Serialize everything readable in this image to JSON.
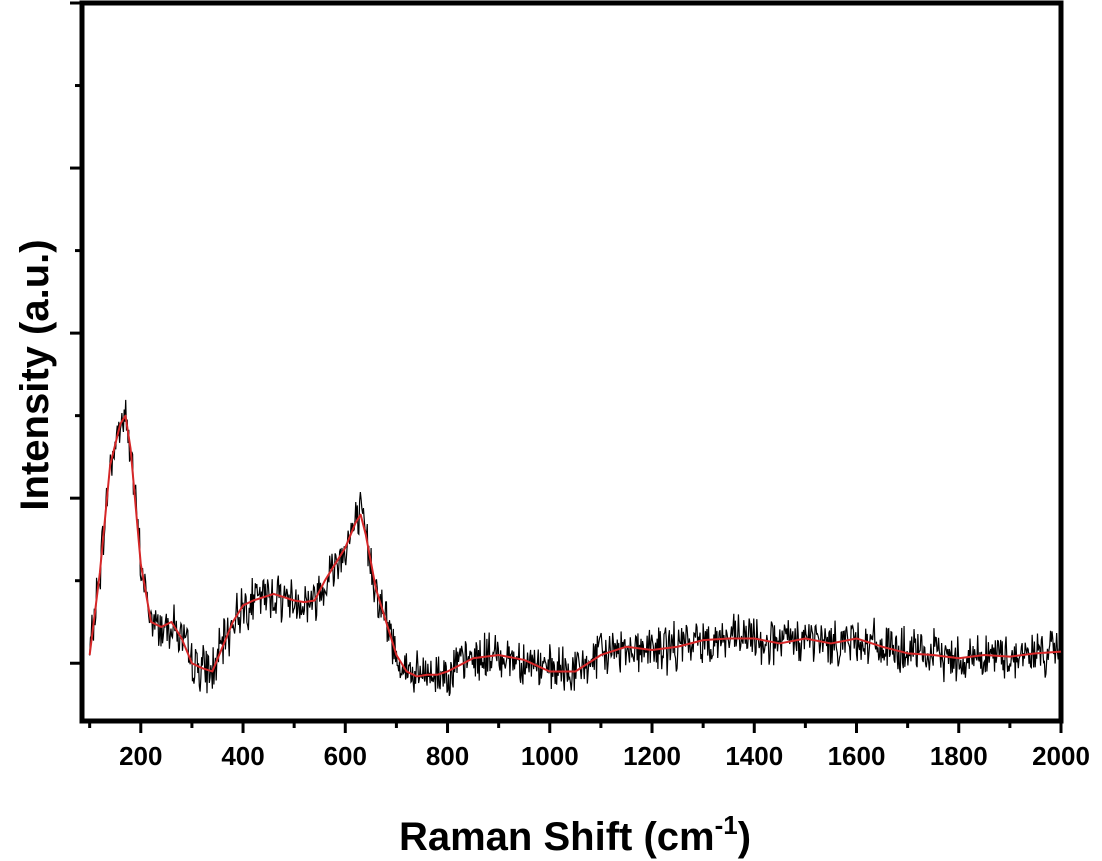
{
  "chart_data": {
    "type": "line",
    "xlabel": "Raman Shift (cm",
    "xlabel_superscript": "-1",
    "xlabel_close": ")",
    "ylabel": "Intensity (a.u.)",
    "xlim": [
      85,
      2000
    ],
    "ylim": [
      -0.35,
      4.0
    ],
    "x_ticks": [
      200,
      400,
      600,
      800,
      1000,
      1200,
      1400,
      1600,
      1800,
      2000
    ],
    "x_tick_labels": [
      "200",
      "400",
      "600",
      "800",
      "1000",
      "1200",
      "1400",
      "1600",
      "1800",
      "2000"
    ],
    "y_major_ticks": [
      0,
      1,
      2,
      3
    ],
    "y_tick_labels_shown": false,
    "grid": false,
    "series": [
      {
        "color": "#000000",
        "style": "raw-noisy",
        "x": [
          100,
          120,
          140,
          160,
          170,
          180,
          200,
          220,
          240,
          260,
          280,
          300,
          320,
          340,
          360,
          380,
          400,
          420,
          440,
          460,
          480,
          500,
          520,
          540,
          560,
          580,
          600,
          620,
          630,
          640,
          660,
          680,
          700,
          720,
          740,
          760,
          780,
          800,
          850,
          900,
          950,
          1000,
          1050,
          1100,
          1150,
          1200,
          1250,
          1300,
          1350,
          1400,
          1450,
          1500,
          1550,
          1600,
          1650,
          1700,
          1750,
          1800,
          1850,
          1900,
          1950,
          2000
        ],
        "y": [
          0.05,
          0.55,
          1.2,
          1.45,
          1.5,
          1.3,
          0.6,
          0.25,
          0.22,
          0.25,
          0.15,
          0.0,
          -0.03,
          -0.05,
          0.1,
          0.25,
          0.35,
          0.38,
          0.4,
          0.42,
          0.4,
          0.38,
          0.37,
          0.38,
          0.5,
          0.6,
          0.7,
          0.85,
          0.9,
          0.78,
          0.45,
          0.25,
          0.05,
          -0.05,
          -0.08,
          -0.07,
          -0.07,
          -0.05,
          0.03,
          0.05,
          0.02,
          -0.05,
          -0.05,
          0.05,
          0.1,
          0.08,
          0.1,
          0.14,
          0.15,
          0.15,
          0.12,
          0.15,
          0.12,
          0.15,
          0.1,
          0.06,
          0.05,
          0.03,
          0.05,
          0.04,
          0.06,
          0.07
        ]
      },
      {
        "color": "#d62728",
        "style": "smoothed",
        "x": [
          100,
          120,
          140,
          160,
          170,
          180,
          200,
          220,
          240,
          260,
          280,
          300,
          320,
          340,
          360,
          380,
          400,
          420,
          440,
          460,
          480,
          500,
          520,
          540,
          560,
          580,
          600,
          620,
          630,
          640,
          660,
          680,
          700,
          720,
          740,
          760,
          780,
          800,
          850,
          900,
          950,
          1000,
          1050,
          1100,
          1150,
          1200,
          1250,
          1300,
          1350,
          1400,
          1450,
          1500,
          1550,
          1600,
          1650,
          1700,
          1750,
          1800,
          1850,
          1900,
          1950,
          2000
        ],
        "y": [
          0.05,
          0.55,
          1.2,
          1.45,
          1.5,
          1.3,
          0.6,
          0.25,
          0.22,
          0.25,
          0.15,
          0.0,
          -0.03,
          -0.05,
          0.1,
          0.25,
          0.35,
          0.38,
          0.4,
          0.42,
          0.4,
          0.38,
          0.37,
          0.38,
          0.5,
          0.6,
          0.7,
          0.85,
          0.9,
          0.78,
          0.45,
          0.25,
          0.05,
          -0.05,
          -0.08,
          -0.07,
          -0.07,
          -0.05,
          0.03,
          0.05,
          0.02,
          -0.05,
          -0.05,
          0.05,
          0.1,
          0.08,
          0.1,
          0.14,
          0.15,
          0.15,
          0.12,
          0.15,
          0.12,
          0.15,
          0.1,
          0.06,
          0.05,
          0.03,
          0.05,
          0.04,
          0.06,
          0.07
        ]
      }
    ]
  }
}
